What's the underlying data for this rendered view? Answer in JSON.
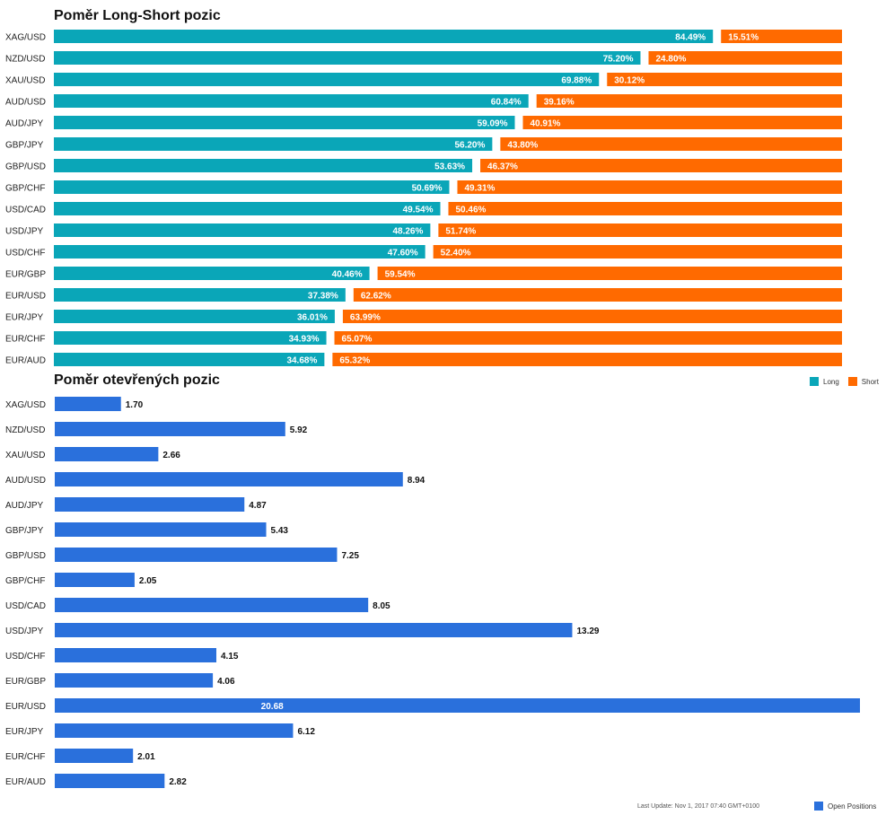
{
  "colors": {
    "long": "#0aa6b8",
    "short": "#ff6a00",
    "open": "#2a70dc"
  },
  "chart_data": [
    {
      "type": "bar",
      "stacked": true,
      "orientation": "horizontal",
      "title": "Poměr Long-Short pozic",
      "categories": [
        "XAG/USD",
        "NZD/USD",
        "XAU/USD",
        "AUD/USD",
        "AUD/JPY",
        "GBP/JPY",
        "GBP/USD",
        "GBP/CHF",
        "USD/CAD",
        "USD/JPY",
        "USD/CHF",
        "EUR/GBP",
        "EUR/USD",
        "EUR/JPY",
        "EUR/CHF",
        "EUR/AUD"
      ],
      "series": [
        {
          "name": "Long",
          "values": [
            84.49,
            75.2,
            69.88,
            60.84,
            59.09,
            56.2,
            53.63,
            50.69,
            49.54,
            48.26,
            47.6,
            40.46,
            37.38,
            36.01,
            34.93,
            34.68
          ],
          "labels": [
            "84.49%",
            "75.20%",
            "69.88%",
            "60.84%",
            "59.09%",
            "56.20%",
            "53.63%",
            "50.69%",
            "49.54%",
            "48.26%",
            "47.60%",
            "40.46%",
            "37.38%",
            "36.01%",
            "34.93%",
            "34.68%"
          ]
        },
        {
          "name": "Short",
          "values": [
            15.51,
            24.8,
            30.12,
            39.16,
            40.91,
            43.8,
            46.37,
            49.31,
            50.46,
            51.74,
            52.4,
            59.54,
            62.62,
            63.99,
            65.07,
            65.32
          ],
          "labels": [
            "15.51%",
            "24.80%",
            "30.12%",
            "39.16%",
            "40.91%",
            "43.80%",
            "46.37%",
            "49.31%",
            "50.46%",
            "51.74%",
            "52.40%",
            "59.54%",
            "62.62%",
            "63.99%",
            "65.07%",
            "65.32%"
          ]
        }
      ],
      "legend": "top-right",
      "grid": false
    },
    {
      "type": "bar",
      "orientation": "horizontal",
      "title": "Poměr otevřených pozic",
      "categories": [
        "XAG/USD",
        "NZD/USD",
        "XAU/USD",
        "AUD/USD",
        "AUD/JPY",
        "GBP/JPY",
        "GBP/USD",
        "GBP/CHF",
        "USD/CAD",
        "USD/JPY",
        "USD/CHF",
        "EUR/GBP",
        "EUR/USD",
        "EUR/JPY",
        "EUR/CHF",
        "EUR/AUD"
      ],
      "series": [
        {
          "name": "Open Positions",
          "values": [
            1.7,
            5.92,
            2.66,
            8.94,
            4.87,
            5.43,
            7.25,
            2.05,
            8.05,
            13.29,
            4.15,
            4.06,
            20.68,
            6.12,
            2.01,
            2.82
          ],
          "labels": [
            "1.70",
            "5.92",
            "2.66",
            "8.94",
            "4.87",
            "5.43",
            "7.25",
            "2.05",
            "8.05",
            "13.29",
            "4.15",
            "4.06",
            "20.68",
            "6.12",
            "2.01",
            "2.82"
          ]
        }
      ],
      "legend": "bottom-right",
      "grid": false
    }
  ],
  "footer": {
    "last_update": "Last Update: Nov 1, 2017 07:40 GMT+0100"
  }
}
